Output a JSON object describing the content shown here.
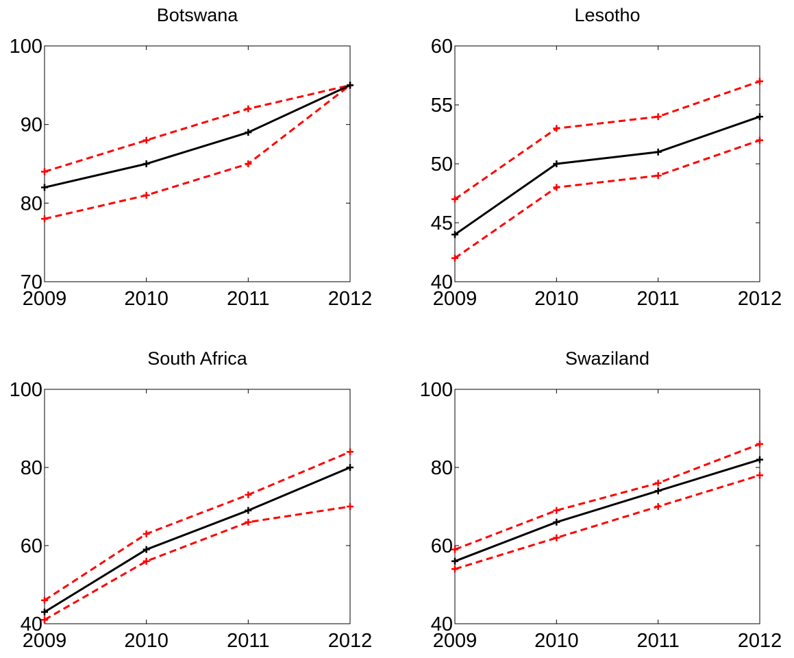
{
  "chart_data": [
    {
      "type": "line",
      "title": "Botswana",
      "x": [
        "2009",
        "2010",
        "2011",
        "2012"
      ],
      "ylim": [
        70,
        100
      ],
      "yticks": [
        70,
        80,
        90,
        100
      ],
      "series": [
        {
          "values": [
            82,
            85,
            89,
            95
          ],
          "color": "#000000",
          "style": "solid"
        },
        {
          "values": [
            84,
            88,
            92,
            95
          ],
          "color": "#ff0000",
          "style": "dashed"
        },
        {
          "values": [
            78,
            81,
            85,
            95
          ],
          "color": "#ff0000",
          "style": "dashed"
        }
      ]
    },
    {
      "type": "line",
      "title": "Lesotho",
      "x": [
        "2009",
        "2010",
        "2011",
        "2012"
      ],
      "ylim": [
        40,
        60
      ],
      "yticks": [
        40,
        45,
        50,
        55,
        60
      ],
      "series": [
        {
          "values": [
            44,
            50,
            51,
            54
          ],
          "color": "#000000",
          "style": "solid"
        },
        {
          "values": [
            47,
            53,
            54,
            57
          ],
          "color": "#ff0000",
          "style": "dashed"
        },
        {
          "values": [
            42,
            48,
            49,
            52
          ],
          "color": "#ff0000",
          "style": "dashed"
        }
      ]
    },
    {
      "type": "line",
      "title": "South Africa",
      "x": [
        "2009",
        "2010",
        "2011",
        "2012"
      ],
      "ylim": [
        40,
        100
      ],
      "yticks": [
        40,
        60,
        80,
        100
      ],
      "series": [
        {
          "values": [
            43,
            59,
            69,
            80
          ],
          "color": "#000000",
          "style": "solid"
        },
        {
          "values": [
            46,
            63,
            73,
            84
          ],
          "color": "#ff0000",
          "style": "dashed"
        },
        {
          "values": [
            41,
            56,
            66,
            70
          ],
          "color": "#ff0000",
          "style": "dashed"
        }
      ]
    },
    {
      "type": "line",
      "title": "Swaziland",
      "x": [
        "2009",
        "2010",
        "2011",
        "2012"
      ],
      "ylim": [
        40,
        100
      ],
      "yticks": [
        40,
        60,
        80,
        100
      ],
      "series": [
        {
          "values": [
            56,
            66,
            74,
            82
          ],
          "color": "#000000",
          "style": "solid"
        },
        {
          "values": [
            59,
            69,
            76,
            86
          ],
          "color": "#ff0000",
          "style": "dashed"
        },
        {
          "values": [
            54,
            62,
            70,
            78
          ],
          "color": "#ff0000",
          "style": "dashed"
        }
      ]
    }
  ]
}
